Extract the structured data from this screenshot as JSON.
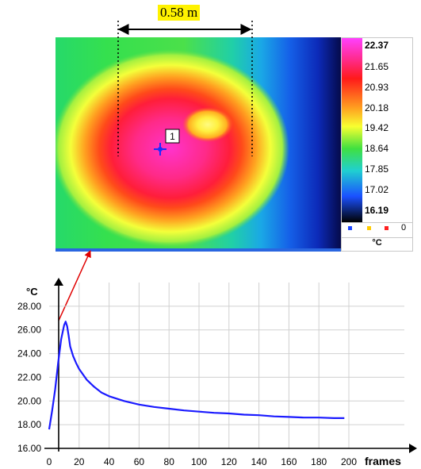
{
  "thermal_image": {
    "distance_label": "0.58 m",
    "spot_marker_label": "1",
    "colorbar": {
      "labels": [
        "22.37",
        "21.65",
        "20.93",
        "20.18",
        "19.42",
        "18.64",
        "17.85",
        "17.02",
        "16.19"
      ],
      "marker_value": "0",
      "unit": "°C",
      "marker_colors": [
        "#1a44ff",
        "#ffcc00",
        "#ff2020"
      ]
    }
  },
  "chart_data": {
    "type": "line",
    "ylabel": "°C",
    "xlabel": "frames",
    "xlim": [
      0,
      200
    ],
    "ylim": [
      16,
      30
    ],
    "x_ticks": [
      "0",
      "20",
      "40",
      "60",
      "80",
      "100",
      "120",
      "140",
      "160",
      "180",
      "200"
    ],
    "y_ticks": [
      "16.00",
      "18.00",
      "20.00",
      "22.00",
      "24.00",
      "26.00",
      "28.00"
    ],
    "grid": true,
    "series": [
      {
        "color": "#1a1aff",
        "x": [
          0,
          2,
          4,
          6,
          8,
          10,
          11,
          12,
          13,
          14,
          16,
          18,
          20,
          25,
          30,
          35,
          40,
          50,
          60,
          70,
          80,
          90,
          100,
          110,
          120,
          130,
          140,
          150,
          160,
          170,
          180,
          190,
          197
        ],
        "y": [
          17.6,
          19.2,
          21.0,
          23.2,
          25.2,
          26.4,
          26.7,
          26.3,
          25.5,
          24.6,
          23.8,
          23.2,
          22.7,
          21.8,
          21.2,
          20.7,
          20.4,
          20.0,
          19.7,
          19.5,
          19.35,
          19.2,
          19.1,
          19.0,
          18.95,
          18.85,
          18.8,
          18.7,
          18.65,
          18.6,
          18.6,
          18.55,
          18.55
        ]
      }
    ]
  },
  "colors": {
    "series": "#1a1aff",
    "arrow": "#e00000",
    "highlight": "#fff200"
  }
}
